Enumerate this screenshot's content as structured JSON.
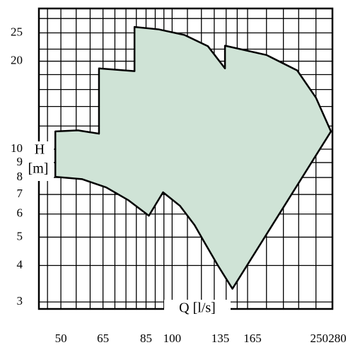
{
  "chart_data": {
    "type": "envelope",
    "x_label": "Q [l/s]",
    "y_label": "H",
    "y_unit": "[m]",
    "log_x": true,
    "log_y": true,
    "xlim": [
      43.6,
      271.5
    ],
    "ylim": [
      2.84,
      30.3
    ],
    "xticks": [
      50,
      65,
      85,
      100,
      135,
      165,
      250,
      280
    ],
    "yticks": [
      3,
      4,
      5,
      6,
      7,
      8,
      9,
      10,
      20,
      25
    ],
    "xgrid": [
      46,
      50,
      55,
      60,
      65,
      70,
      75,
      80,
      85,
      90,
      95,
      100,
      110,
      120,
      130,
      140,
      150,
      160,
      180,
      200,
      220,
      245
    ],
    "ygrid": [
      3,
      4,
      5,
      6,
      7,
      8,
      9,
      10,
      12,
      14,
      16,
      18,
      20,
      22,
      25,
      28
    ],
    "grid": true,
    "color": "#cfe3d6",
    "envelope": {
      "x": [
        48.3,
        48.3,
        57,
        66.3,
        76,
        86.5,
        94.5,
        105,
        115,
        123,
        133,
        145.6,
        269,
        245,
        218,
        180,
        139,
        139,
        125,
        107.9,
        92,
        79.1,
        79.1,
        63.4,
        63.4,
        55.6
      ],
      "y": [
        11.5,
        8.04,
        7.9,
        7.4,
        6.7,
        5.92,
        7.12,
        6.4,
        5.5,
        4.74,
        4.0,
        3.33,
        11.5,
        15.0,
        18.6,
        21.0,
        22.6,
        18.9,
        22.5,
        24.6,
        25.7,
        26.2,
        18.5,
        18.9,
        11.3,
        11.6
      ]
    }
  }
}
